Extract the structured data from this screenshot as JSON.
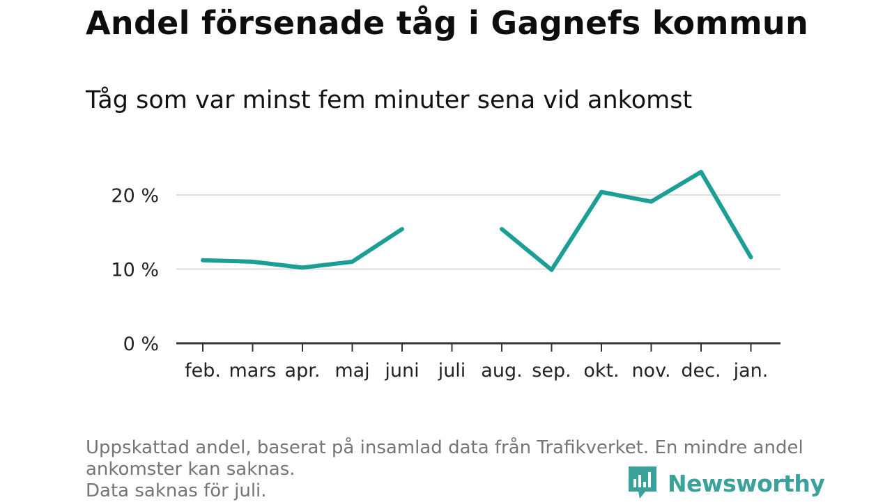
{
  "title": "Andel försenade tåg i Gagnefs kommun",
  "subtitle": "Tåg som var minst fem minuter sena vid ankomst",
  "footnote": [
    "Uppskattad andel, baserat på insamlad data från Trafikverket. En mindre andel",
    "ankomster kan saknas.",
    "Data saknas för juli."
  ],
  "brand": {
    "name": "Newsworthy",
    "color": "#3aa29a",
    "icon": "newsworthy-logo-icon"
  },
  "colors": {
    "line": "#1a9e96",
    "grid": "#dddddd",
    "axis": "#333333"
  },
  "chart_data": {
    "type": "line",
    "categories": [
      "feb.",
      "mars",
      "apr.",
      "maj",
      "juni",
      "juli",
      "aug.",
      "sep.",
      "okt.",
      "nov.",
      "dec.",
      "jan."
    ],
    "series": [
      {
        "values": [
          11.2,
          11.0,
          10.2,
          11.0,
          15.4,
          null,
          15.4,
          9.9,
          20.4,
          19.1,
          23.1,
          11.6
        ]
      }
    ],
    "yticks": [
      {
        "value": 0,
        "label": "0 %"
      },
      {
        "value": 10,
        "label": "10 %"
      },
      {
        "value": 20,
        "label": "20 %"
      }
    ],
    "ylim": [
      0,
      25
    ],
    "grid": true
  }
}
